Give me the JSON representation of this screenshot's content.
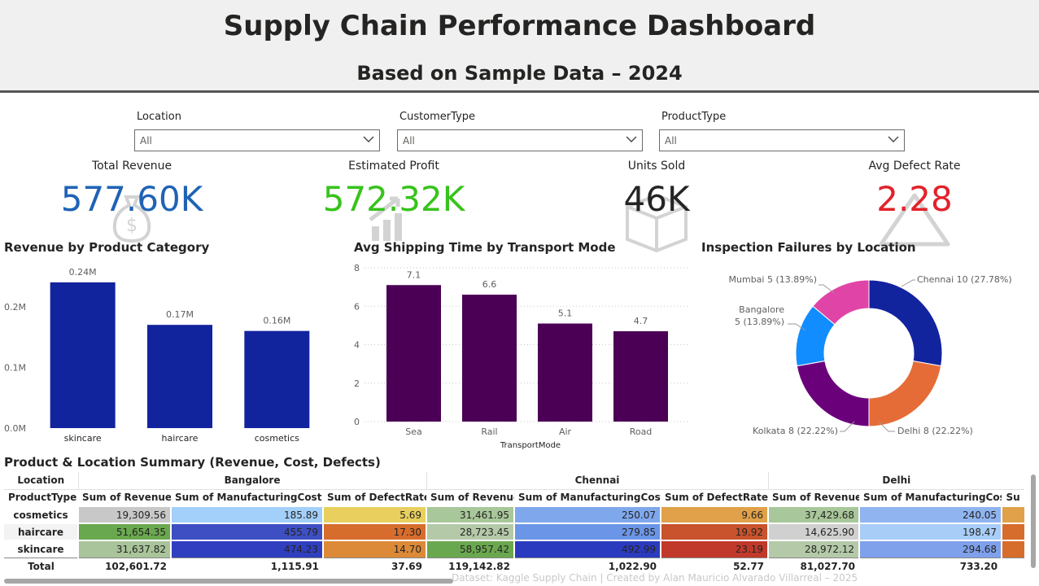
{
  "header": {
    "title": "Supply Chain Performance Dashboard",
    "subtitle": "Based on Sample Data – 2024"
  },
  "slicers": [
    {
      "label": "Location",
      "value": "All"
    },
    {
      "label": "CustomerType",
      "value": "All"
    },
    {
      "label": "ProductType",
      "value": "All"
    }
  ],
  "kpis": [
    {
      "label": "Total Revenue",
      "value": "577.60K",
      "color": "#1f63b5",
      "icon": "money-bag-icon"
    },
    {
      "label": "Estimated Profit",
      "value": "572.32K",
      "color": "#37c31c",
      "icon": "growth-chart-icon"
    },
    {
      "label": "Units Sold",
      "value": "46K",
      "color": "#252423",
      "icon": "box-icon"
    },
    {
      "label": "Avg Defect Rate",
      "value": "2.28",
      "color": "#e3212a",
      "icon": "warning-icon"
    }
  ],
  "chart_data": [
    {
      "type": "bar",
      "title": "Revenue by Product Category",
      "categories": [
        "skincare",
        "haircare",
        "cosmetics"
      ],
      "values": [
        0.24,
        0.17,
        0.16
      ],
      "data_labels": [
        "0.24M",
        "0.17M",
        "0.16M"
      ],
      "yticks": [
        "0.0M",
        "0.1M",
        "0.2M"
      ],
      "ylim": [
        0,
        0.26
      ],
      "color": "#12239e"
    },
    {
      "type": "bar",
      "title": "Avg Shipping Time by Transport Mode",
      "categories": [
        "Sea",
        "Rail",
        "Air",
        "Road"
      ],
      "values": [
        7.1,
        6.6,
        5.1,
        4.7
      ],
      "data_labels": [
        "7.1",
        "6.6",
        "5.1",
        "4.7"
      ],
      "yticks": [
        "0",
        "2",
        "4",
        "6",
        "8"
      ],
      "ylim": [
        0,
        8
      ],
      "xlabel": "TransportMode",
      "color": "#4b0055",
      "grid": true
    },
    {
      "type": "pie",
      "title": "Inspection Failures by Location",
      "donut": true,
      "slices": [
        {
          "label": "Chennai",
          "value": 10,
          "pct": "27.78%",
          "display": "Chennai 10 (27.78%)",
          "color": "#12239e"
        },
        {
          "label": "Delhi",
          "value": 8,
          "pct": "22.22%",
          "display": "Delhi 8 (22.22%)",
          "color": "#e66c37"
        },
        {
          "label": "Kolkata",
          "value": 8,
          "pct": "22.22%",
          "display": "Kolkata 8 (22.22%)",
          "color": "#6b007b"
        },
        {
          "label": "Bangalore",
          "value": 5,
          "pct": "13.89%",
          "display_line1": "Bangalore",
          "display_line2": "5 (13.89%)",
          "color": "#118dff"
        },
        {
          "label": "Mumbai",
          "value": 5,
          "pct": "13.89%",
          "display": "Mumbai 5 (13.89%)",
          "color": "#e044a7"
        }
      ]
    }
  ],
  "table": {
    "title": "Product & Location Summary (Revenue, Cost, Defects)",
    "location_label": "Location",
    "product_label": "ProductType",
    "locations": [
      "Bangalore",
      "Chennai",
      "Delhi"
    ],
    "columns": [
      "Sum of Revenue",
      "Sum of ManufacturingCost",
      "Sum of DefectRate",
      "Sum of Revenue",
      "Sum of ManufacturingCost",
      "Sum of DefectRate",
      "Sum of Revenue",
      "Sum of ManufacturingCost",
      "Su"
    ],
    "rows": [
      {
        "name": "cosmetics",
        "cells": [
          "19,309.56",
          "185.89",
          "5.69",
          "31,461.95",
          "250.07",
          "9.66",
          "37,429.68",
          "240.05",
          ""
        ],
        "colors": [
          "#c8c8c8",
          "#a3d0fa",
          "#e8cf5e",
          "#a8c79a",
          "#7fa8ec",
          "#e0a14a",
          "#a8c79a",
          "#8fb4f0",
          "#e0a14a"
        ]
      },
      {
        "name": "haircare",
        "cells": [
          "51,654.35",
          "455.79",
          "17.30",
          "28,723.45",
          "279.85",
          "19.92",
          "14,625.90",
          "198.47",
          ""
        ],
        "colors": [
          "#6aa84f",
          "#3d4fc2",
          "#d76d2c",
          "#b4c9a8",
          "#6b95e6",
          "#c8532c",
          "#d0d0d0",
          "#a8cdf7",
          "#d76d2c"
        ]
      },
      {
        "name": "skincare",
        "cells": [
          "31,637.82",
          "474.23",
          "14.70",
          "58,957.42",
          "492.99",
          "23.19",
          "28,972.12",
          "294.68",
          ""
        ],
        "colors": [
          "#a9c49a",
          "#2f3fc0",
          "#dc8a38",
          "#6aa84f",
          "#2a3bbf",
          "#c0392b",
          "#b4c9a8",
          "#7fa0ea",
          "#d76d2c"
        ]
      }
    ],
    "total": {
      "name": "Total",
      "cells": [
        "102,601.72",
        "1,115.91",
        "37.69",
        "119,142.82",
        "1,022.90",
        "52.77",
        "81,027.70",
        "733.20",
        ""
      ]
    }
  },
  "footer": "Dataset: Kaggle Supply Chain | Created by Alan Mauricio Alvarado Villarreal – 2025"
}
